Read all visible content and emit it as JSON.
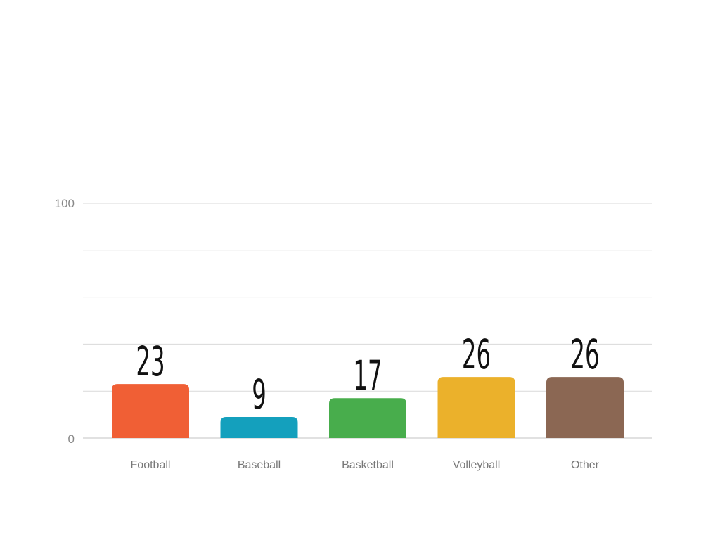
{
  "chart_data": {
    "type": "bar",
    "title": "",
    "xlabel": "",
    "ylabel": "",
    "categories": [
      "Football",
      "Baseball",
      "Basketball",
      "Volleyball",
      "Other"
    ],
    "values": [
      23,
      9,
      17,
      26,
      26
    ],
    "value_labels": [
      "23",
      "9",
      "17",
      "26",
      "26"
    ],
    "colors": [
      "#f05f35",
      "#14a0bd",
      "#48ad4c",
      "#ebb12b",
      "#8b6753"
    ],
    "ylim": [
      0,
      100
    ],
    "y_tick_labels": [
      "0",
      "100"
    ],
    "gridline_count": 5,
    "grid": true,
    "legend": "none"
  }
}
